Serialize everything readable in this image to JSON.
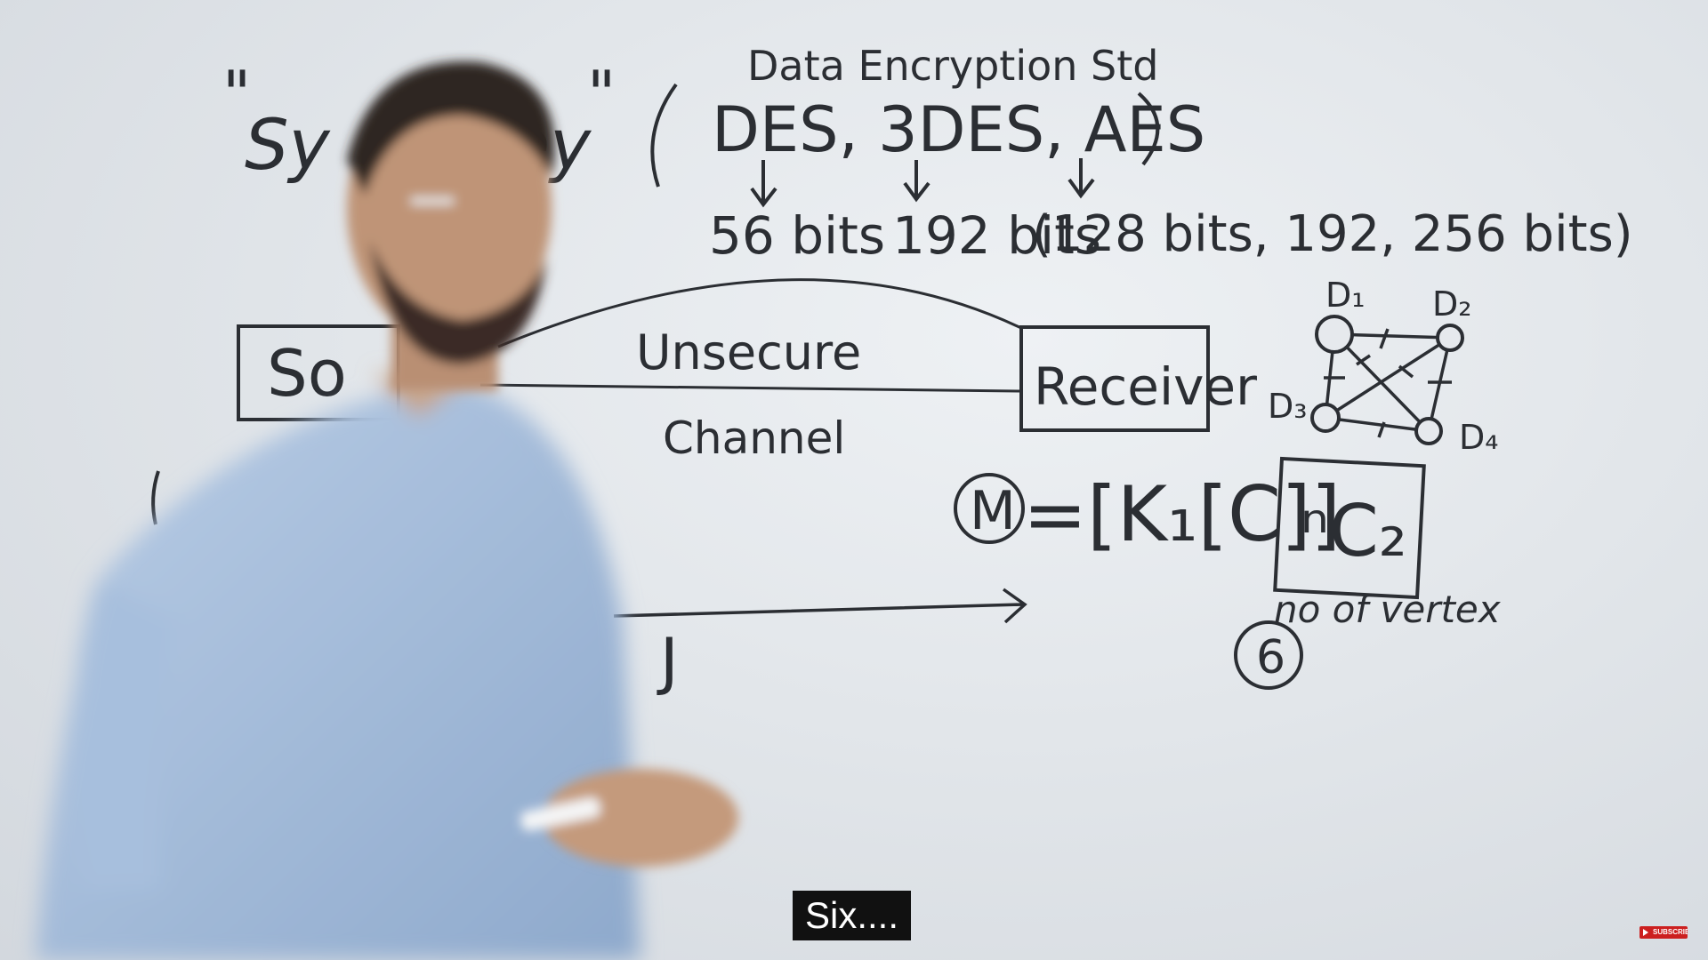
{
  "board": {
    "title_quote_open": "\"",
    "title_sym": "Sy",
    "title_key": "ey",
    "title_quote_close": "\"",
    "standard_name": "Data Encryption Std",
    "algorithms": "DES, 3DES, AES",
    "bits_des": "56 bits",
    "bits_3des": "192 bits",
    "bits_aes": "(128 bits, 192, 256 bits)",
    "channel_top": "Unsecure",
    "channel_bottom": "Channel",
    "sender_partial": "So",
    "receiver": "Receiver",
    "formula_m": "M",
    "formula_rest": "=[K₁[C]]",
    "combination": "ⁿC₂",
    "vertex_label": "no of vertex",
    "vertex_count": "6",
    "check_mark": "J",
    "nodes": [
      "D₁",
      "D₂",
      "D₃",
      "D₄"
    ]
  },
  "caption": {
    "text": "Six...."
  },
  "subscribe_badge": {
    "label": "SUBSCRIBE"
  },
  "colors": {
    "ink": "#2b2e33",
    "caption_bg": "#111111",
    "subscribe_red": "#cc1f1f"
  }
}
